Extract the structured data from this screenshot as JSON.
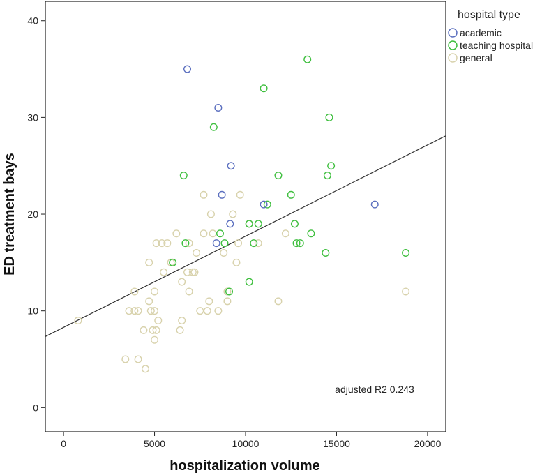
{
  "chart_data": {
    "type": "scatter",
    "title": "",
    "xlabel": "hospitalization volume",
    "ylabel": "ED treatment bays",
    "xlim": [
      -1000,
      21000
    ],
    "ylim": [
      -2.5,
      42
    ],
    "xticks": [
      0,
      5000,
      10000,
      15000,
      20000
    ],
    "yticks": [
      0,
      10,
      20,
      30,
      40
    ],
    "grid": false,
    "legend": {
      "title": "hospital type",
      "position": "right"
    },
    "series": [
      {
        "name": "academic",
        "color": "#5b6fbf",
        "points": [
          [
            6800,
            35
          ],
          [
            8500,
            31
          ],
          [
            9200,
            25
          ],
          [
            8700,
            22
          ],
          [
            11000,
            21
          ],
          [
            17100,
            21
          ],
          [
            9150,
            19
          ],
          [
            8400,
            17
          ]
        ]
      },
      {
        "name": "teaching hospital",
        "color": "#3fbf3f",
        "points": [
          [
            13400,
            36
          ],
          [
            11000,
            33
          ],
          [
            14600,
            30
          ],
          [
            8250,
            29
          ],
          [
            6600,
            24
          ],
          [
            11800,
            24
          ],
          [
            14500,
            24
          ],
          [
            14700,
            25
          ],
          [
            12500,
            22
          ],
          [
            11200,
            21
          ],
          [
            8600,
            18
          ],
          [
            10200,
            19
          ],
          [
            10700,
            19
          ],
          [
            12700,
            19
          ],
          [
            13600,
            18
          ],
          [
            6700,
            17
          ],
          [
            8850,
            17
          ],
          [
            10450,
            17
          ],
          [
            12800,
            17
          ],
          [
            13000,
            17
          ],
          [
            14400,
            16
          ],
          [
            18800,
            16
          ],
          [
            6000,
            15
          ],
          [
            9100,
            12
          ],
          [
            10200,
            13
          ]
        ]
      },
      {
        "name": "general",
        "color": "#d8d2ac",
        "points": [
          [
            800,
            9
          ],
          [
            3400,
            5
          ],
          [
            3600,
            10
          ],
          [
            3900,
            10
          ],
          [
            3900,
            12
          ],
          [
            4100,
            5
          ],
          [
            4100,
            10
          ],
          [
            4400,
            8
          ],
          [
            4500,
            4
          ],
          [
            4700,
            11
          ],
          [
            4700,
            15
          ],
          [
            4800,
            10
          ],
          [
            4900,
            8
          ],
          [
            5000,
            7
          ],
          [
            5000,
            10
          ],
          [
            5000,
            12
          ],
          [
            5100,
            17
          ],
          [
            5100,
            8
          ],
          [
            5200,
            9
          ],
          [
            5400,
            17
          ],
          [
            5500,
            14
          ],
          [
            5700,
            17
          ],
          [
            5900,
            15
          ],
          [
            6200,
            18
          ],
          [
            6400,
            8
          ],
          [
            6500,
            13
          ],
          [
            6500,
            9
          ],
          [
            6800,
            14
          ],
          [
            6900,
            17
          ],
          [
            6900,
            12
          ],
          [
            7100,
            14
          ],
          [
            7200,
            14
          ],
          [
            7300,
            16
          ],
          [
            7500,
            10
          ],
          [
            7700,
            22
          ],
          [
            7700,
            18
          ],
          [
            7900,
            10
          ],
          [
            8000,
            11
          ],
          [
            8100,
            20
          ],
          [
            8200,
            18
          ],
          [
            8500,
            10
          ],
          [
            8800,
            16
          ],
          [
            9000,
            12
          ],
          [
            9000,
            11
          ],
          [
            9300,
            20
          ],
          [
            9500,
            15
          ],
          [
            9600,
            17
          ],
          [
            9700,
            22
          ],
          [
            10200,
            19
          ],
          [
            10700,
            17
          ],
          [
            11800,
            11
          ],
          [
            12200,
            18
          ],
          [
            18800,
            12
          ]
        ]
      }
    ],
    "fit_line": {
      "x": [
        -1000,
        21000
      ],
      "y": [
        7.35,
        28.1
      ]
    },
    "annotation": "adjusted R2 0.243"
  }
}
